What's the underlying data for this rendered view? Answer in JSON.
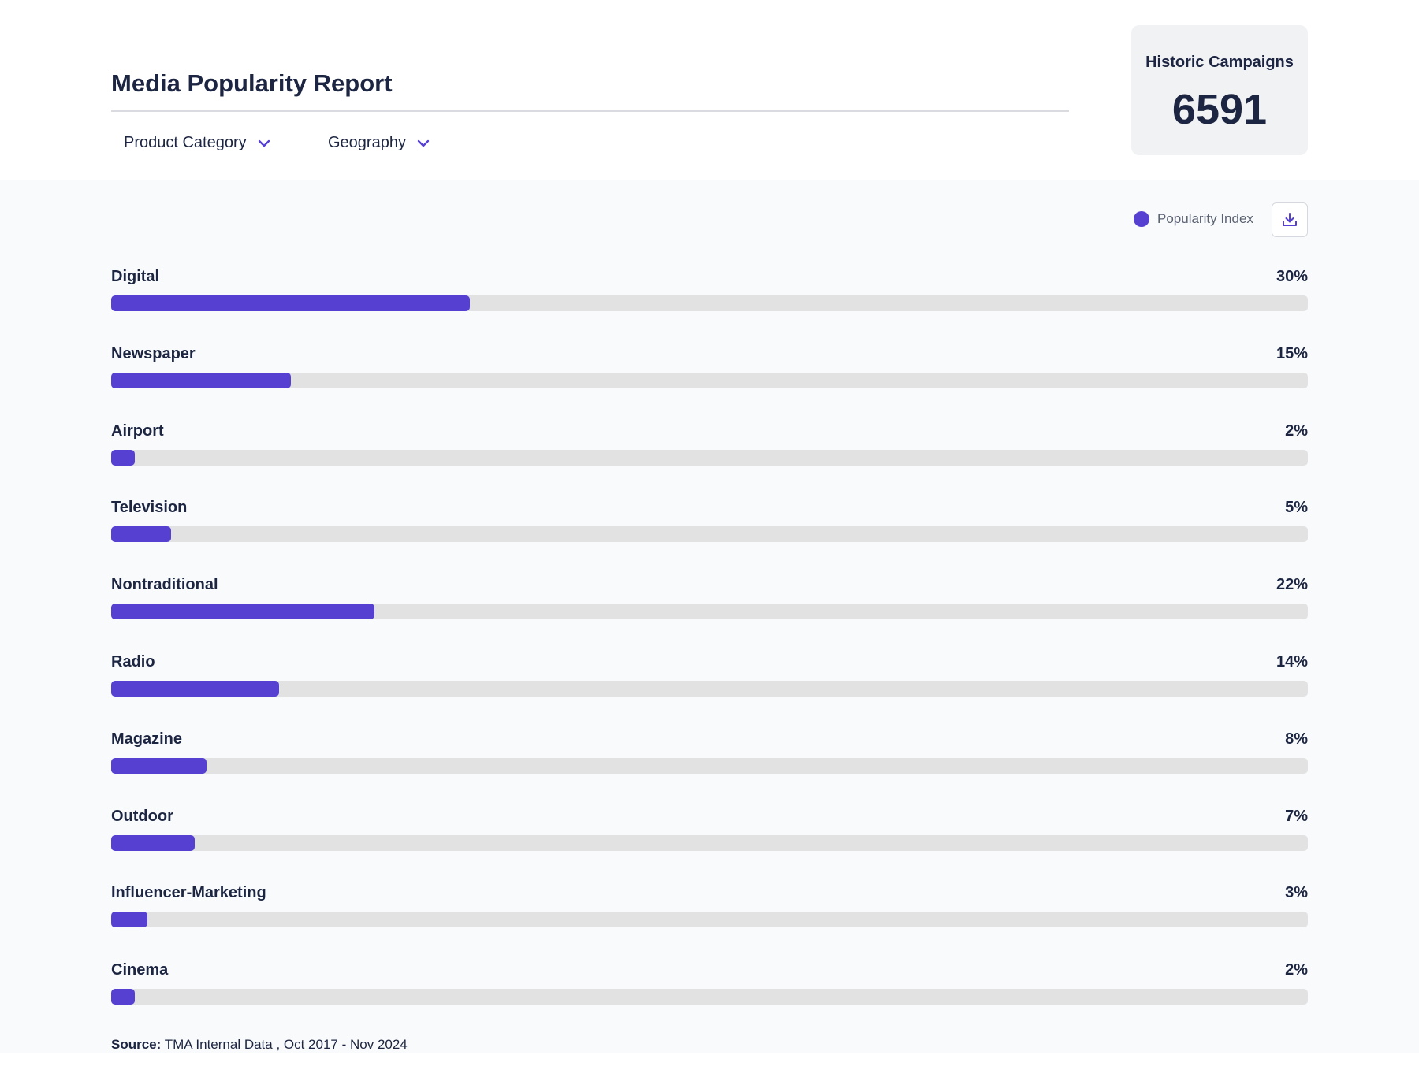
{
  "header": {
    "title": "Media Popularity Report",
    "filters": [
      {
        "label": "Product Category",
        "icon": "chevron-down-icon"
      },
      {
        "label": "Geography",
        "icon": "chevron-down-icon"
      }
    ]
  },
  "kpi": {
    "label": "Historic Campaigns",
    "value": "6591"
  },
  "legend": {
    "label": "Popularity Index",
    "color": "#5540d2",
    "download_icon": "download-icon"
  },
  "chart_data": {
    "type": "bar",
    "orientation": "horizontal",
    "title": "Media Popularity Report",
    "series": [
      {
        "name": "Popularity Index",
        "color": "#5540d2"
      }
    ],
    "categories": [
      "Digital",
      "Newspaper",
      "Airport",
      "Television",
      "Nontraditional",
      "Radio",
      "Magazine",
      "Outdoor",
      "Influencer-Marketing",
      "Cinema"
    ],
    "values": [
      30,
      15,
      2,
      5,
      22,
      14,
      8,
      7,
      3,
      2
    ],
    "value_labels": [
      "30%",
      "15%",
      "2%",
      "5%",
      "22%",
      "14%",
      "8%",
      "7%",
      "3%",
      "2%"
    ],
    "xlim": [
      0,
      100
    ],
    "unit": "%",
    "grid": false,
    "legend_position": "top-right"
  },
  "source": {
    "label": "Source:",
    "text": "TMA Internal Data , Oct 2017 - Nov 2024"
  }
}
